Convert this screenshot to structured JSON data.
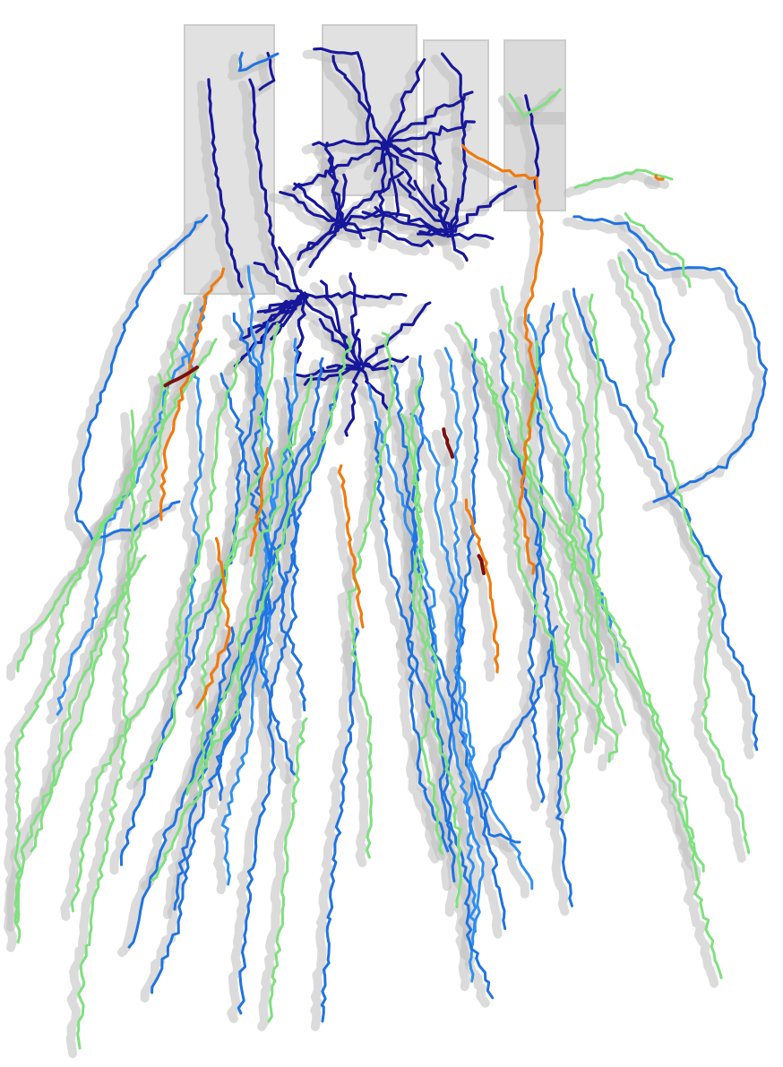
{
  "scene": {
    "description_free": true,
    "background": "#ffffff",
    "palette": {
      "tube_fill": "#d9d9d9",
      "tube_edge": "#b8b8b8",
      "shadow": "#bdbdbd",
      "navy": "#16179a",
      "blue": "#1f74e0",
      "light_blue": "#2f8ff0",
      "green": "#7fe07f",
      "orange": "#f07a10",
      "dark_red": "#7a1010"
    },
    "trace_groups": [
      "navy",
      "blue",
      "green",
      "orange",
      "dark_red"
    ]
  }
}
